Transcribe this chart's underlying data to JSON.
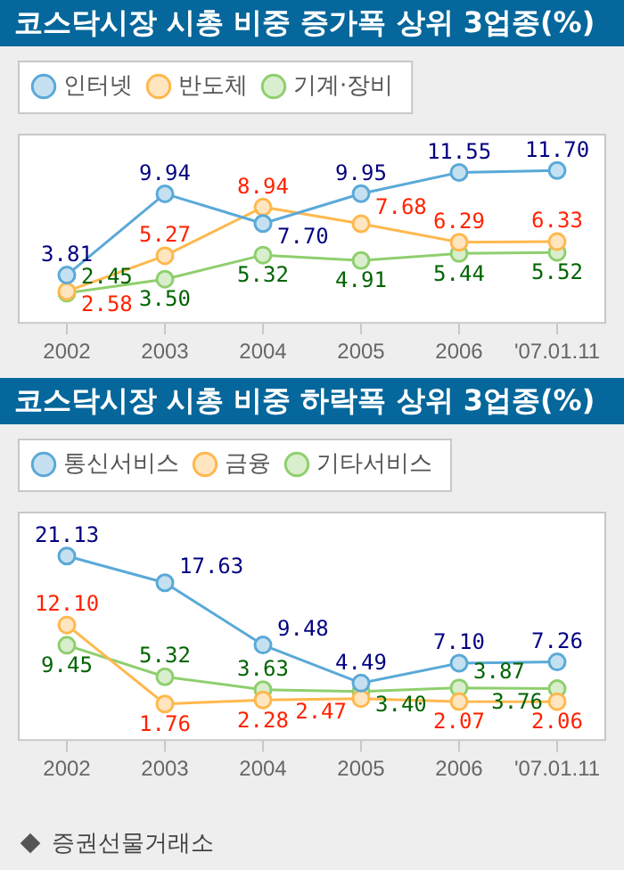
{
  "chart_data": [
    {
      "type": "line",
      "title": "코스닥시장 시총 비중 증가폭 상위 3업종(%)",
      "categories": [
        "2002",
        "2003",
        "2004",
        "2005",
        "2006",
        "'07.01.11"
      ],
      "series": [
        {
          "name": "인터넷",
          "color": "#5aa9d8",
          "values": [
            3.81,
            9.94,
            7.7,
            9.95,
            11.55,
            11.7
          ],
          "value_labels": [
            "3.81",
            "9.94",
            "7.70",
            "9.95",
            "11.55",
            "11.70"
          ]
        },
        {
          "name": "반도체",
          "color": "#ffb84d",
          "values": [
            2.58,
            5.27,
            8.94,
            7.68,
            6.29,
            6.33
          ],
          "value_labels": [
            "2.58",
            "5.27",
            "8.94",
            "7.68",
            "6.29",
            "6.33"
          ]
        },
        {
          "name": "기계·장비",
          "color": "#8fcf6e",
          "values": [
            2.45,
            3.5,
            5.32,
            4.91,
            5.44,
            5.52
          ],
          "value_labels": [
            "2.45",
            "3.50",
            "5.32",
            "4.91",
            "5.44",
            "5.52"
          ]
        }
      ],
      "legend": "top left",
      "marker": "circle",
      "grid": false,
      "tick_labels": "x"
    },
    {
      "type": "line",
      "title": "코스닥시장 시총 비중 하락폭 상위 3업종(%)",
      "categories": [
        "2002",
        "2003",
        "2004",
        "2005",
        "2006",
        "'07.01.11"
      ],
      "series": [
        {
          "name": "통신서비스",
          "color": "#5aa9d8",
          "values": [
            21.13,
            17.63,
            9.48,
            4.49,
            7.1,
            7.26
          ],
          "value_labels": [
            "21.13",
            "17.63",
            "9.48",
            "4.49",
            "7.10",
            "7.26"
          ]
        },
        {
          "name": "금융",
          "color": "#ffb84d",
          "values": [
            12.1,
            1.76,
            2.28,
            2.47,
            2.07,
            2.06
          ],
          "value_labels": [
            "12.10",
            "1.76",
            "2.28",
            "2.47",
            "2.07",
            "2.06"
          ]
        },
        {
          "name": "기타서비스",
          "color": "#8fcf6e",
          "values": [
            9.45,
            5.32,
            3.63,
            3.4,
            3.87,
            3.76
          ],
          "value_labels": [
            "9.45",
            "5.32",
            "3.63",
            "3.40",
            "3.87",
            "3.76"
          ]
        }
      ],
      "legend": "top left",
      "marker": "circle",
      "grid": false,
      "tick_labels": "x",
      "annotations": [
        "증권선물거래소"
      ]
    }
  ]
}
